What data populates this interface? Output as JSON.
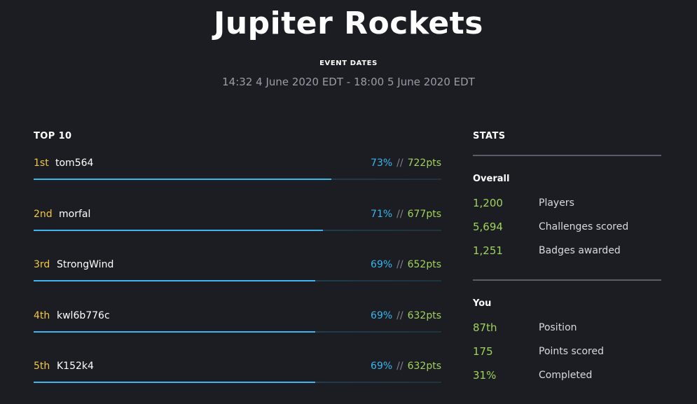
{
  "event": {
    "title": "Jupiter Rockets",
    "dates_label": "EVENT DATES",
    "dates": "14:32 4 June 2020 EDT - 18:00 5 June 2020 EDT"
  },
  "leaderboard": {
    "heading": "TOP 10",
    "separator": "//",
    "rows": [
      {
        "rank": "1st",
        "name": "tom564",
        "percent": "73%",
        "progress": 0.73,
        "points": "722pts"
      },
      {
        "rank": "2nd",
        "name": "morfal",
        "percent": "71%",
        "progress": 0.71,
        "points": "677pts"
      },
      {
        "rank": "3rd",
        "name": "StrongWind",
        "percent": "69%",
        "progress": 0.69,
        "points": "652pts"
      },
      {
        "rank": "4th",
        "name": "kwl6b776c",
        "percent": "69%",
        "progress": 0.69,
        "points": "632pts"
      },
      {
        "rank": "5th",
        "name": "K152k4",
        "percent": "69%",
        "progress": 0.69,
        "points": "632pts"
      }
    ]
  },
  "stats": {
    "heading": "STATS",
    "overall": {
      "title": "Overall",
      "items": [
        {
          "value": "1,200",
          "label": "Players"
        },
        {
          "value": "5,694",
          "label": "Challenges scored"
        },
        {
          "value": "1,251",
          "label": "Badges awarded"
        }
      ]
    },
    "you": {
      "title": "You",
      "items": [
        {
          "value": "87th",
          "label": "Position"
        },
        {
          "value": "175",
          "label": "Points scored"
        },
        {
          "value": "31%",
          "label": "Completed"
        }
      ]
    }
  },
  "colors": {
    "background": "#1c1d22",
    "rank": "#f2c744",
    "percent": "#38b6f0",
    "points": "#9fd35b",
    "progress_fill": "#41b5ee"
  }
}
